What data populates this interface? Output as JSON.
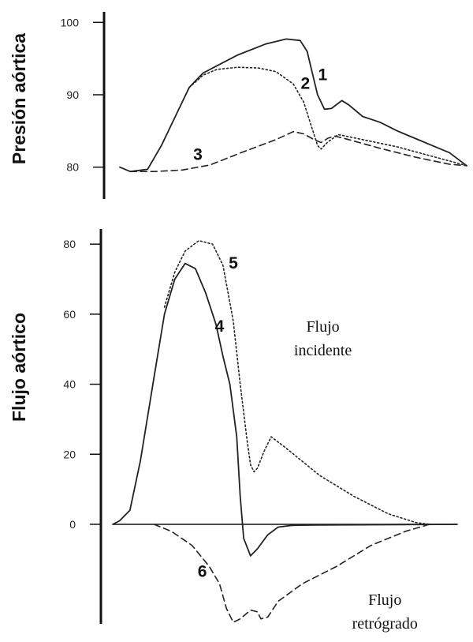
{
  "chart_data": [
    {
      "type": "line",
      "ylabel": "Presión aórtica",
      "xlabel": "",
      "title": "",
      "ylim": [
        78,
        102
      ],
      "xlim": [
        0,
        100
      ],
      "yticks": [
        80,
        90,
        100
      ],
      "grid": false,
      "series": [
        {
          "name": "1",
          "style": "solid",
          "color": "#222222",
          "points": [
            [
              0,
              80.0
            ],
            [
              3,
              79.4
            ],
            [
              8,
              79.7
            ],
            [
              12,
              83
            ],
            [
              16,
              87
            ],
            [
              20,
              91
            ],
            [
              24,
              93
            ],
            [
              28,
              94
            ],
            [
              34,
              95.5
            ],
            [
              42,
              97
            ],
            [
              48,
              97.7
            ],
            [
              52,
              97.5
            ],
            [
              54,
              96
            ],
            [
              56,
              92
            ],
            [
              57,
              90
            ],
            [
              59,
              88
            ],
            [
              61,
              88.1
            ],
            [
              64,
              89.2
            ],
            [
              66,
              88.6
            ],
            [
              70,
              87
            ],
            [
              75,
              86.2
            ],
            [
              80,
              85
            ],
            [
              85,
              84
            ],
            [
              90,
              83
            ],
            [
              95,
              82
            ],
            [
              100,
              80.2
            ]
          ]
        },
        {
          "name": "2",
          "style": "dotted",
          "color": "#222222",
          "points": [
            [
              20,
              91
            ],
            [
              24,
              92.7
            ],
            [
              28,
              93.5
            ],
            [
              34,
              93.8
            ],
            [
              40,
              93.7
            ],
            [
              45,
              93.2
            ],
            [
              50,
              91.5
            ],
            [
              53,
              89
            ],
            [
              55,
              86
            ],
            [
              57,
              83
            ],
            [
              58,
              82.5
            ],
            [
              60,
              83.5
            ],
            [
              63,
              84.5
            ],
            [
              70,
              83.8
            ],
            [
              80,
              82.8
            ],
            [
              90,
              81.5
            ],
            [
              100,
              80.2
            ]
          ]
        },
        {
          "name": "3",
          "style": "dashed",
          "color": "#222222",
          "points": [
            [
              3,
              79.4
            ],
            [
              10,
              79.4
            ],
            [
              18,
              79.6
            ],
            [
              26,
              80.3
            ],
            [
              35,
              82
            ],
            [
              45,
              83.8
            ],
            [
              50,
              84.9
            ],
            [
              53,
              84.6
            ],
            [
              56,
              83.8
            ],
            [
              58,
              83.4
            ],
            [
              60,
              84.0
            ],
            [
              62,
              84.3
            ],
            [
              66,
              83.8
            ],
            [
              75,
              82.6
            ],
            [
              85,
              81.4
            ],
            [
              95,
              80.4
            ],
            [
              100,
              80.2
            ]
          ]
        }
      ],
      "labels": [
        {
          "text": "1",
          "x": 58.5,
          "y": 92
        },
        {
          "text": "2",
          "x": 53.5,
          "y": 90.8
        },
        {
          "text": "3",
          "x": 22.5,
          "y": 81
        }
      ]
    },
    {
      "type": "line",
      "ylabel": "Flujo aórtico",
      "xlabel": "",
      "title": "",
      "ylim": [
        -30,
        85
      ],
      "xlim": [
        0,
        100
      ],
      "yticks": [
        0,
        20,
        40,
        60,
        80
      ],
      "grid": false,
      "series": [
        {
          "name": "4",
          "style": "solid",
          "color": "#222222",
          "points": [
            [
              0,
              0
            ],
            [
              2,
              1
            ],
            [
              5,
              4
            ],
            [
              8,
              18
            ],
            [
              12,
              42
            ],
            [
              15,
              60
            ],
            [
              18,
              70
            ],
            [
              21,
              74.5
            ],
            [
              24,
              73
            ],
            [
              27,
              66
            ],
            [
              30,
              57
            ],
            [
              32,
              48
            ],
            [
              34,
              40
            ],
            [
              36,
              25
            ],
            [
              37,
              8
            ],
            [
              38,
              -4
            ],
            [
              40,
              -9
            ],
            [
              42,
              -7
            ],
            [
              45,
              -3
            ],
            [
              48,
              -0.8
            ],
            [
              52,
              -0.3
            ],
            [
              60,
              -0.2
            ],
            [
              100,
              0
            ]
          ]
        },
        {
          "name": "5",
          "style": "dotted",
          "color": "#222222",
          "points": [
            [
              15,
              62
            ],
            [
              18,
              72
            ],
            [
              21,
              78
            ],
            [
              25,
              81
            ],
            [
              29,
              80
            ],
            [
              32,
              74
            ],
            [
              35,
              58
            ],
            [
              37,
              40
            ],
            [
              39,
              24
            ],
            [
              40,
              17
            ],
            [
              41,
              15
            ],
            [
              42,
              16
            ],
            [
              44,
              21
            ],
            [
              46,
              25
            ],
            [
              50,
              22
            ],
            [
              55,
              18
            ],
            [
              60,
              14
            ],
            [
              70,
              8
            ],
            [
              80,
              3
            ],
            [
              88,
              0.5
            ],
            [
              92,
              0
            ]
          ]
        },
        {
          "name": "6",
          "style": "dashed",
          "color": "#222222",
          "points": [
            [
              12,
              0
            ],
            [
              17,
              -2
            ],
            [
              23,
              -6
            ],
            [
              28,
              -12
            ],
            [
              31,
              -17
            ],
            [
              33,
              -24
            ],
            [
              35,
              -28
            ],
            [
              37,
              -27
            ],
            [
              40,
              -24.5
            ],
            [
              42,
              -25
            ],
            [
              43,
              -27
            ],
            [
              45,
              -26.5
            ],
            [
              48,
              -22
            ],
            [
              55,
              -17
            ],
            [
              65,
              -12
            ],
            [
              75,
              -6
            ],
            [
              85,
              -2
            ],
            [
              92,
              0
            ]
          ]
        }
      ],
      "labels": [
        {
          "text": "5",
          "x": 35,
          "y": 73
        },
        {
          "text": "4",
          "x": 31,
          "y": 55
        },
        {
          "text": "6",
          "x": 26,
          "y": -15
        }
      ],
      "annotations": [
        {
          "text": "Flujo incidente",
          "lines": [
            "Flujo",
            "incidente"
          ],
          "x": 61,
          "y": 55
        },
        {
          "text": "Flujo retrógrado",
          "lines": [
            "Flujo",
            "retrógrado"
          ],
          "x": 79,
          "y": -23
        }
      ]
    }
  ]
}
